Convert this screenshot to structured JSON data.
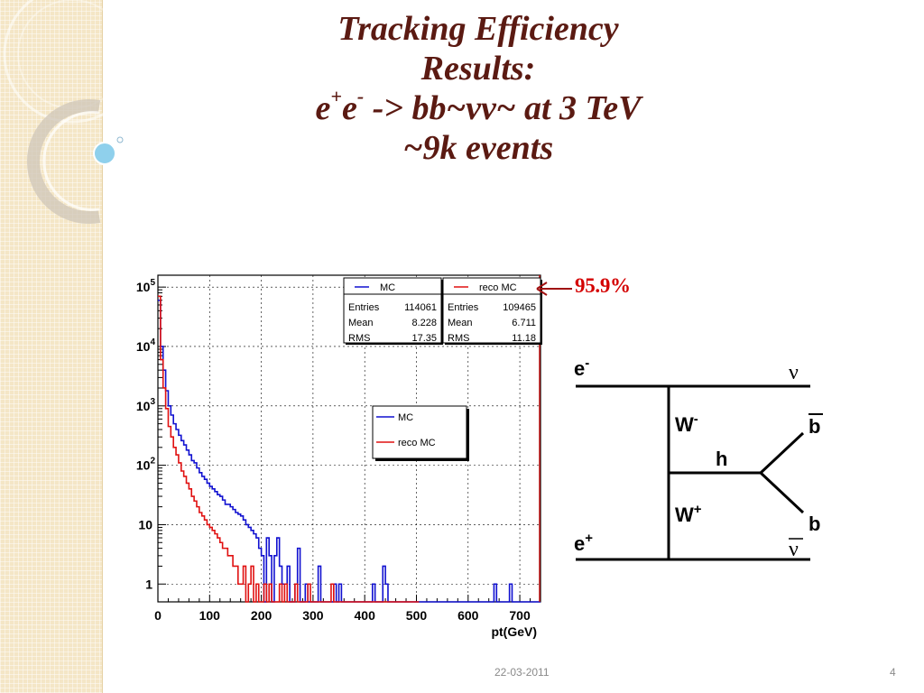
{
  "slide": {
    "title_line1": "Tracking Efficiency",
    "title_line2": "Results:",
    "title_line3_a": "e",
    "title_line3_sup1": "+",
    "title_line3_b": "e",
    "title_line3_sup2": "-",
    "title_line3_c": " -> bb~νν~ at 3 TeV",
    "title_line4": "~9k events",
    "annotation": "95.9%",
    "footer_date": "22-03-2011",
    "footer_page": "4"
  },
  "chart_data": {
    "type": "line",
    "xlabel": "pt(GeV)",
    "xlim": [
      0,
      740
    ],
    "ylim_log10": [
      -0.3,
      5.2
    ],
    "log_y": true,
    "x_ticks": [
      0,
      100,
      200,
      300,
      400,
      500,
      600,
      700
    ],
    "y_ticks": [
      {
        "v": 1,
        "base": "1",
        "exp": ""
      },
      {
        "v": 10,
        "base": "10",
        "exp": ""
      },
      {
        "v": 100,
        "base": "10",
        "exp": "2"
      },
      {
        "v": 1000,
        "base": "10",
        "exp": "3"
      },
      {
        "v": 10000,
        "base": "10",
        "exp": "4"
      },
      {
        "v": 100000,
        "base": "10",
        "exp": "5"
      }
    ],
    "grid": true,
    "series": [
      {
        "name": "MC",
        "color": "#1010d0",
        "x": [
          0,
          5,
          10,
          15,
          20,
          25,
          30,
          35,
          40,
          45,
          50,
          55,
          60,
          65,
          70,
          75,
          80,
          85,
          90,
          95,
          100,
          105,
          110,
          115,
          120,
          125,
          130,
          135,
          140,
          145,
          150,
          155,
          160,
          165,
          170,
          175,
          180,
          185,
          190,
          195,
          200,
          205,
          210,
          215,
          220,
          225,
          230,
          235,
          240,
          245,
          250,
          255,
          260,
          265,
          270,
          275,
          280,
          285,
          290,
          295,
          300,
          305,
          310,
          315,
          320,
          325,
          330,
          335,
          340,
          345,
          350,
          355,
          360,
          365,
          370,
          375,
          380,
          385,
          390,
          395,
          400,
          405,
          410,
          415,
          420,
          425,
          430,
          435,
          440,
          445,
          450,
          455,
          460,
          465,
          470,
          475,
          480,
          485,
          490,
          495,
          500,
          505,
          510,
          515,
          520,
          525,
          530,
          535,
          540,
          545,
          550,
          555,
          560,
          565,
          570,
          575,
          580,
          585,
          590,
          595,
          600,
          605,
          610,
          615,
          620,
          625,
          630,
          635,
          640,
          645,
          650,
          655,
          660,
          665,
          670,
          675,
          680,
          685,
          690,
          695,
          700,
          705,
          710,
          715,
          720,
          725,
          730,
          735
        ],
        "y": [
          60000,
          10000,
          4000,
          1800,
          1000,
          700,
          500,
          400,
          320,
          260,
          220,
          180,
          150,
          120,
          110,
          90,
          75,
          65,
          58,
          50,
          44,
          40,
          36,
          32,
          30,
          26,
          22,
          22,
          20,
          18,
          16,
          15,
          14,
          12,
          10,
          9,
          8,
          7,
          6,
          4,
          3,
          0,
          6,
          3,
          0,
          3,
          6,
          2,
          1,
          1,
          2,
          0,
          0,
          1,
          4,
          0,
          0,
          1,
          0,
          0,
          0,
          0,
          2,
          0,
          0,
          0,
          0,
          0,
          1,
          0,
          1,
          0,
          0,
          0,
          0,
          0,
          0,
          0,
          0,
          0,
          0,
          0,
          0,
          1,
          0,
          0,
          0,
          2,
          1,
          0,
          0,
          0,
          0,
          0,
          0,
          0,
          0,
          0,
          0,
          0,
          0,
          0,
          0,
          0,
          0,
          0,
          0,
          0,
          0,
          0,
          0,
          0,
          0,
          0,
          0,
          0,
          0,
          0,
          0,
          0,
          0,
          0,
          0,
          0,
          0,
          0,
          0,
          0,
          0,
          0,
          1,
          0,
          0,
          0,
          0,
          0,
          1,
          0,
          0,
          0,
          0,
          0,
          0,
          0,
          0,
          0,
          0,
          0
        ],
        "legend": {
          "entries": 114061,
          "mean": 8.228,
          "rms": 17.35
        }
      },
      {
        "name": "reco MC",
        "color": "#e01010",
        "x": [
          0,
          5,
          10,
          15,
          20,
          25,
          30,
          35,
          40,
          45,
          50,
          55,
          60,
          65,
          70,
          75,
          80,
          85,
          90,
          95,
          100,
          105,
          110,
          115,
          120,
          125,
          130,
          135,
          140,
          145,
          150,
          155,
          160,
          165,
          170,
          175,
          180,
          185,
          190,
          195,
          200,
          205,
          210,
          215,
          220,
          225,
          230,
          235,
          240,
          245,
          250,
          255,
          260,
          265,
          270,
          275,
          280,
          285,
          290,
          295,
          300,
          305,
          310,
          315,
          320,
          325,
          330,
          335,
          340,
          345,
          350,
          355,
          360,
          365,
          370,
          375,
          380,
          385,
          390,
          395,
          400,
          405,
          410,
          415,
          420,
          425,
          430,
          435,
          440,
          445,
          450,
          455,
          460,
          465,
          470,
          475,
          480,
          485,
          490,
          495,
          500
        ],
        "y": [
          70000,
          6000,
          2000,
          900,
          450,
          300,
          200,
          150,
          110,
          80,
          65,
          50,
          40,
          30,
          25,
          20,
          16,
          14,
          12,
          10,
          9,
          8,
          7,
          6,
          5,
          4,
          4,
          3,
          3,
          2,
          2,
          1,
          1,
          2,
          0,
          1,
          2,
          0,
          1,
          0,
          0,
          1,
          0,
          1,
          0,
          0,
          0,
          1,
          0,
          1,
          0,
          0,
          0,
          1,
          0,
          0,
          0,
          0,
          1,
          0,
          0,
          0,
          0,
          0,
          0,
          0,
          0,
          1,
          0,
          0,
          0,
          0,
          0,
          0,
          0,
          0,
          0,
          0,
          0,
          0,
          0,
          0,
          0,
          0,
          0,
          0,
          0,
          0,
          0,
          0,
          0,
          0,
          0,
          0,
          0,
          0,
          0,
          0,
          0,
          0,
          0
        ],
        "legend": {
          "entries": 109465,
          "mean": 6.711,
          "rms": 11.18
        }
      }
    ],
    "stats_labels": {
      "entries": "Entries",
      "mean": "Mean",
      "rms": "RMS"
    },
    "legend_labels": [
      "MC",
      "reco MC"
    ]
  },
  "feynman": {
    "e_minus": "e",
    "e_minus_sup": "-",
    "e_plus": "e",
    "e_plus_sup": "+",
    "nu": "ν",
    "nu_bar": "ν",
    "w_minus": "W",
    "w_minus_sup": "-",
    "w_plus": "W",
    "w_plus_sup": "+",
    "higgs": "h",
    "b": "b",
    "b_bar": "b"
  }
}
